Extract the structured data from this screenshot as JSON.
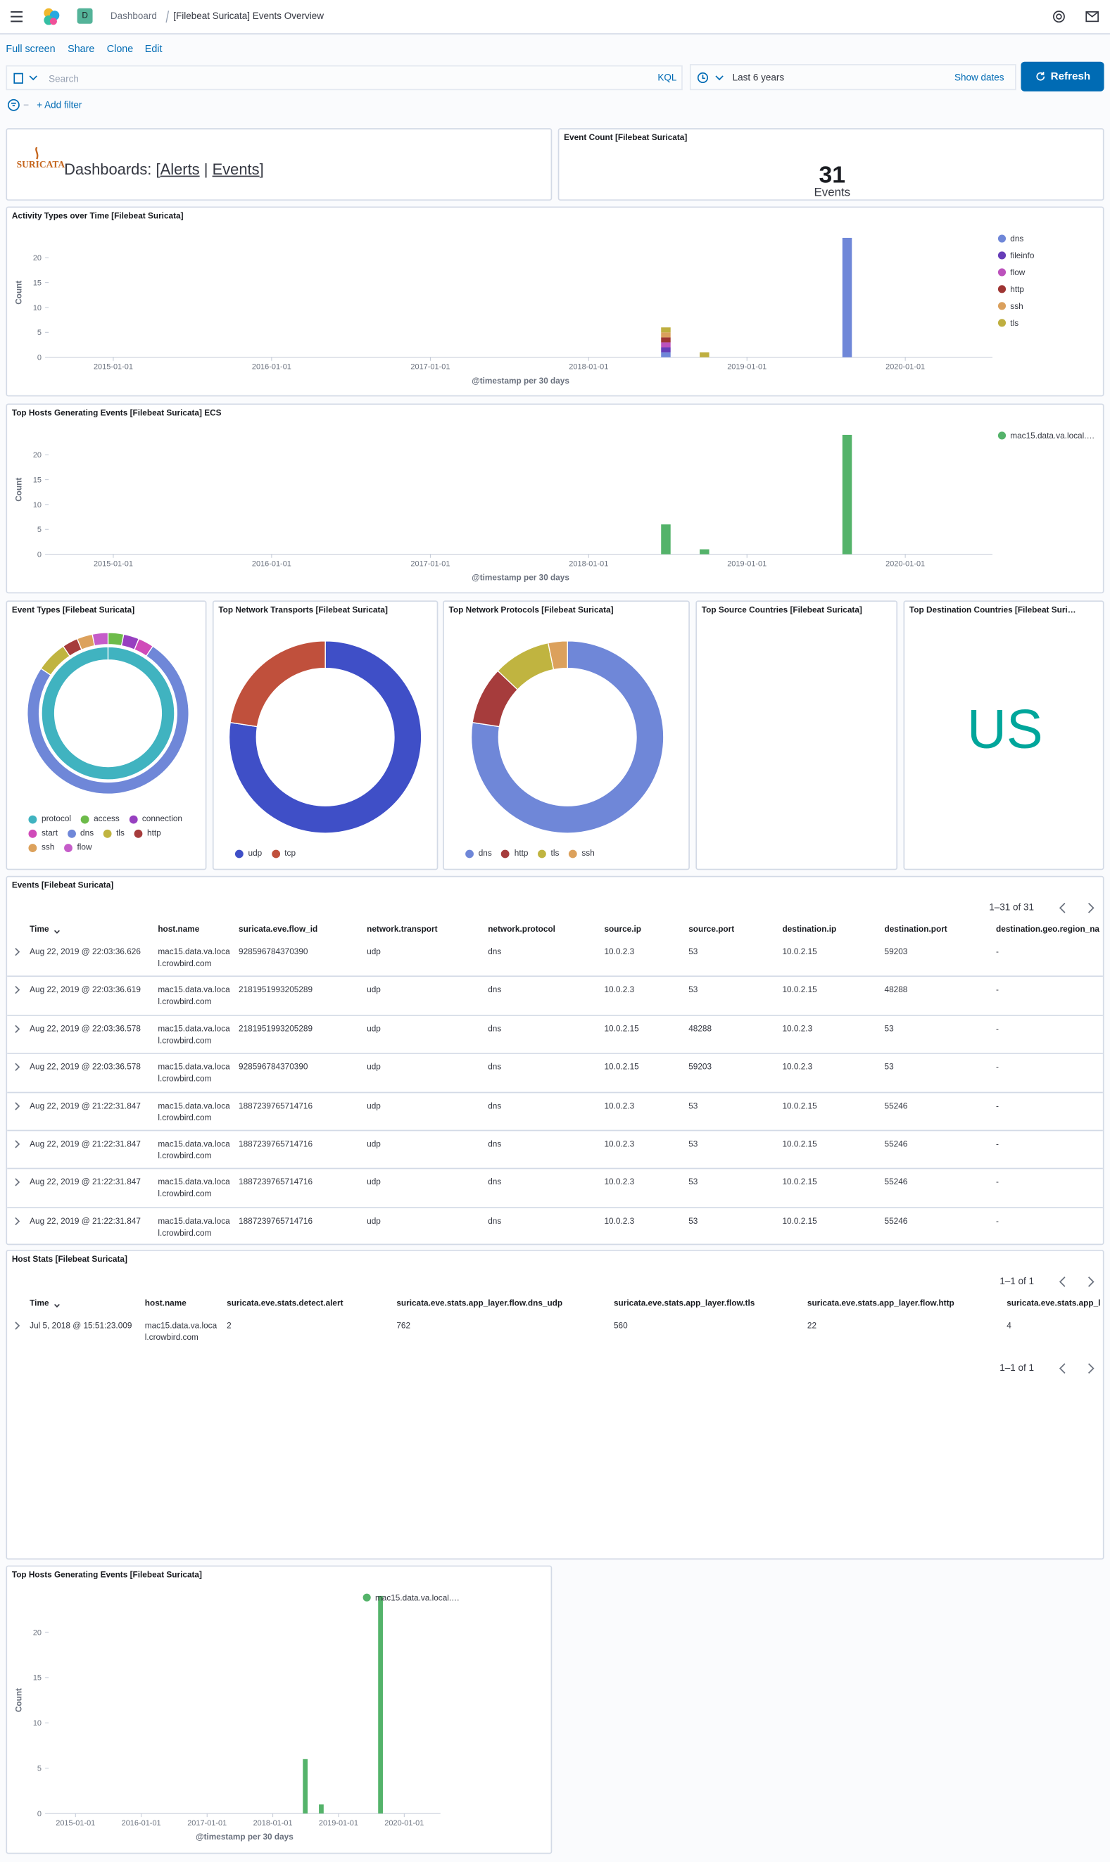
{
  "header": {
    "breadcrumbs": [
      "Dashboard",
      "[Filebeat Suricata] Events Overview"
    ],
    "space": "D"
  },
  "menu": [
    "Full screen",
    "Share",
    "Clone",
    "Edit"
  ],
  "query": {
    "placeholder": "Search",
    "language": "KQL",
    "time_range": "Last 6 years",
    "show_dates": "Show dates",
    "refresh": "Refresh",
    "add_filter": "+ Add filter"
  },
  "markdown": {
    "logo": "SURICATA",
    "prefix": "Dashboards: [",
    "links": [
      "Alerts",
      "Events"
    ],
    "separator": "|",
    "suffix": "]"
  },
  "metric": {
    "title": "Event Count [Filebeat Suricata]",
    "value": 31,
    "label": "Events"
  },
  "chart_data": [
    {
      "type": "bar",
      "stacked": true,
      "title": "Activity Types over Time [Filebeat Suricata]",
      "x": [
        "2018-06-17",
        "2018-09-14",
        "2019-08-09"
      ],
      "series": [
        {
          "name": "dns",
          "color": "#6f87d8",
          "values": [
            1,
            0,
            24
          ]
        },
        {
          "name": "fileinfo",
          "color": "#663db8",
          "values": [
            1,
            0,
            0
          ]
        },
        {
          "name": "flow",
          "color": "#bc52bc",
          "values": [
            1,
            0,
            0
          ]
        },
        {
          "name": "http",
          "color": "#9e3533",
          "values": [
            1,
            0,
            0
          ]
        },
        {
          "name": "ssh",
          "color": "#daa05d",
          "values": [
            1,
            0,
            0
          ]
        },
        {
          "name": "tls",
          "color": "#bfaf40",
          "values": [
            1,
            1,
            0
          ]
        }
      ],
      "xlim": [
        "2014-08-05",
        "2020-07-20"
      ],
      "xticks": [
        "2015-01-01",
        "2016-01-01",
        "2017-01-01",
        "2018-01-01",
        "2019-01-01",
        "2020-01-01"
      ],
      "ylim": [
        0,
        26
      ],
      "yticks": [
        0,
        5,
        10,
        15,
        20
      ],
      "y_label": "Count",
      "x_label": "@timestamp per 30 days",
      "legend": "right"
    },
    {
      "type": "bar",
      "stacked": true,
      "title": "Top Hosts Generating Events [Filebeat Suricata] ECS",
      "x": [
        "2018-06-17",
        "2018-09-14",
        "2019-08-09"
      ],
      "series": [
        {
          "name": "mac15.data.va.local.…",
          "color": "#54b36a",
          "values": [
            6,
            1,
            24
          ]
        }
      ],
      "xlim": [
        "2014-08-05",
        "2020-07-20"
      ],
      "xticks": [
        "2015-01-01",
        "2016-01-01",
        "2017-01-01",
        "2018-01-01",
        "2019-01-01",
        "2020-01-01"
      ],
      "ylim": [
        0,
        26
      ],
      "yticks": [
        0,
        5,
        10,
        15,
        20
      ],
      "y_label": "Count",
      "x_label": "@timestamp per 30 days",
      "legend": "right"
    },
    {
      "type": "pie",
      "donut": true,
      "title": "Event Types [Filebeat Suricata]",
      "categories": [
        "protocol",
        "access",
        "connection",
        "start",
        "dns",
        "tls",
        "http",
        "ssh",
        "flow"
      ],
      "values": [
        31,
        1,
        1,
        1,
        24,
        2,
        1,
        1,
        1
      ],
      "colors": [
        "#40b3c0",
        "#6dbb4a",
        "#9740c0",
        "#d04bb9",
        "#6f87d8",
        "#c0b440",
        "#a63c3c",
        "#dca15c",
        "#c55cc9"
      ],
      "rings": [
        "inner",
        "outer",
        "outer",
        "outer",
        "outer",
        "outer",
        "outer",
        "outer",
        "outer"
      ]
    },
    {
      "type": "pie",
      "donut": true,
      "title": "Top Network Transports [Filebeat Suricata]",
      "categories": [
        "udp",
        "tcp"
      ],
      "values": [
        24,
        7
      ],
      "colors": [
        "#3f4fc7",
        "#c0503c"
      ]
    },
    {
      "type": "pie",
      "donut": true,
      "title": "Top Network Protocols [Filebeat Suricata]",
      "categories": [
        "dns",
        "http",
        "tls",
        "ssh"
      ],
      "values": [
        24,
        3,
        3,
        1
      ],
      "colors": [
        "#6f87d8",
        "#a63c3c",
        "#c0b440",
        "#dca15c"
      ]
    },
    {
      "type": "bar",
      "stacked": true,
      "title": "Top Hosts Generating Events [Filebeat Suricata]",
      "x": [
        "2018-06-17",
        "2018-09-14",
        "2019-08-09"
      ],
      "series": [
        {
          "name": "mac15.data.va.local.…",
          "color": "#54b36a",
          "values": [
            6,
            1,
            24
          ]
        }
      ],
      "xlim": [
        "2014-08-05",
        "2020-07-20"
      ],
      "xticks": [
        "2015-01-01",
        "2016-01-01",
        "2017-01-01",
        "2018-01-01",
        "2019-01-01",
        "2020-01-01"
      ],
      "ylim": [
        0,
        25
      ],
      "yticks": [
        0,
        5,
        10,
        15,
        20
      ],
      "y_label": "Count",
      "x_label": "@timestamp per 30 days",
      "legend": "top-right"
    }
  ],
  "source_countries": {
    "title": "Top Source Countries [Filebeat Suricata]"
  },
  "destination_countries": {
    "title": "Top Destination Countries [Filebeat Suri…",
    "tags": [
      "US"
    ]
  },
  "events_table": {
    "title": "Events [Filebeat Suricata]",
    "pagination": "1–31 of 31",
    "columns": [
      "Time",
      "host.name",
      "suricata.eve.flow_id",
      "network.transport",
      "network.protocol",
      "source.ip",
      "source.port",
      "destination.ip",
      "destination.port",
      "destination.geo.region_na"
    ],
    "rows": [
      [
        "Aug 22, 2019 @ 22:03:36.626",
        "mac15.data.va.local.crowbird.com",
        "928596784370390",
        "udp",
        "dns",
        "10.0.2.3",
        "53",
        "10.0.2.15",
        "59203",
        "-"
      ],
      [
        "Aug 22, 2019 @ 22:03:36.619",
        "mac15.data.va.local.crowbird.com",
        "2181951993205289",
        "udp",
        "dns",
        "10.0.2.3",
        "53",
        "10.0.2.15",
        "48288",
        "-"
      ],
      [
        "Aug 22, 2019 @ 22:03:36.578",
        "mac15.data.va.local.crowbird.com",
        "2181951993205289",
        "udp",
        "dns",
        "10.0.2.15",
        "48288",
        "10.0.2.3",
        "53",
        "-"
      ],
      [
        "Aug 22, 2019 @ 22:03:36.578",
        "mac15.data.va.local.crowbird.com",
        "928596784370390",
        "udp",
        "dns",
        "10.0.2.15",
        "59203",
        "10.0.2.3",
        "53",
        "-"
      ],
      [
        "Aug 22, 2019 @ 21:22:31.847",
        "mac15.data.va.local.crowbird.com",
        "1887239765714716",
        "udp",
        "dns",
        "10.0.2.3",
        "53",
        "10.0.2.15",
        "55246",
        "-"
      ],
      [
        "Aug 22, 2019 @ 21:22:31.847",
        "mac15.data.va.local.crowbird.com",
        "1887239765714716",
        "udp",
        "dns",
        "10.0.2.3",
        "53",
        "10.0.2.15",
        "55246",
        "-"
      ],
      [
        "Aug 22, 2019 @ 21:22:31.847",
        "mac15.data.va.local.crowbird.com",
        "1887239765714716",
        "udp",
        "dns",
        "10.0.2.3",
        "53",
        "10.0.2.15",
        "55246",
        "-"
      ],
      [
        "Aug 22, 2019 @ 21:22:31.847",
        "mac15.data.va.local.crowbird.com",
        "1887239765714716",
        "udp",
        "dns",
        "10.0.2.3",
        "53",
        "10.0.2.15",
        "55246",
        "-"
      ]
    ]
  },
  "host_stats_table": {
    "title": "Host Stats [Filebeat Suricata]",
    "pagination": "1–1 of 1",
    "columns": [
      "Time",
      "host.name",
      "suricata.eve.stats.detect.alert",
      "suricata.eve.stats.app_layer.flow.dns_udp",
      "suricata.eve.stats.app_layer.flow.tls",
      "suricata.eve.stats.app_layer.flow.http",
      "suricata.eve.stats.app_l"
    ],
    "rows": [
      [
        "Jul 5, 2018 @ 15:51:23.009",
        "mac15.data.va.local.crowbird.com",
        "2",
        "762",
        "560",
        "22",
        "4"
      ]
    ]
  }
}
